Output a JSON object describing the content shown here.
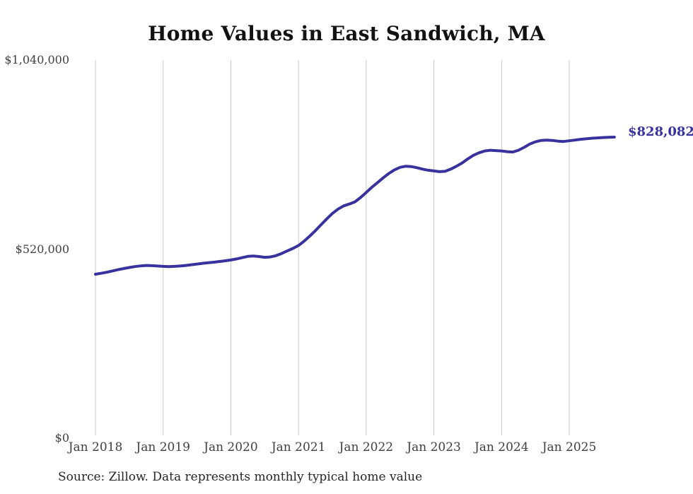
{
  "chart_data": {
    "type": "line",
    "title": "Home Values in East Sandwich, MA",
    "source_note": "Source: Zillow. Data represents monthly typical home value",
    "end_label": "$828,082",
    "final_value": 828082,
    "xlabel": "",
    "ylabel": "",
    "ylim": [
      0,
      1040000
    ],
    "grid": "vertical-year-gridlines-only",
    "legend": "none",
    "line_color": "#38329f",
    "grid_color": "#c9c9c9",
    "xticks": [
      "Jan 2018",
      "Jan 2019",
      "Jan 2020",
      "Jan 2021",
      "Jan 2022",
      "Jan 2023",
      "Jan 2024",
      "Jan 2025"
    ],
    "yticks": [
      {
        "value": 0,
        "label": "$0"
      },
      {
        "value": 520000,
        "label": "$520,000"
      },
      {
        "value": 1040000,
        "label": "$1,040,000"
      }
    ],
    "series": [
      {
        "name": "monthly-typical-home-value",
        "start_month": "Jan 2018",
        "end_month": "Sep 2025",
        "frequency": "monthly",
        "values": [
          451000,
          453500,
          456500,
          460000,
          463500,
          466500,
          469500,
          472000,
          474000,
          475000,
          474500,
          473500,
          472500,
          472000,
          472500,
          473500,
          475000,
          477000,
          479000,
          481000,
          482500,
          484000,
          486000,
          488000,
          490000,
          493000,
          496500,
          500000,
          501000,
          499500,
          497500,
          498500,
          502000,
          508000,
          515000,
          522000,
          530000,
          542000,
          556000,
          571000,
          587000,
          603000,
          618000,
          630000,
          639000,
          644000,
          650000,
          662000,
          676000,
          690000,
          703000,
          716000,
          728000,
          738000,
          745000,
          748000,
          747000,
          744000,
          740000,
          737000,
          735000,
          733000,
          734000,
          740000,
          748000,
          757000,
          768000,
          778000,
          785000,
          790000,
          792000,
          791000,
          790000,
          788000,
          787000,
          792000,
          800000,
          809000,
          815000,
          819000,
          820000,
          819000,
          817000,
          816000,
          818000,
          820000,
          822000,
          823500,
          825000,
          826000,
          827000,
          827500,
          828082
        ]
      }
    ]
  }
}
